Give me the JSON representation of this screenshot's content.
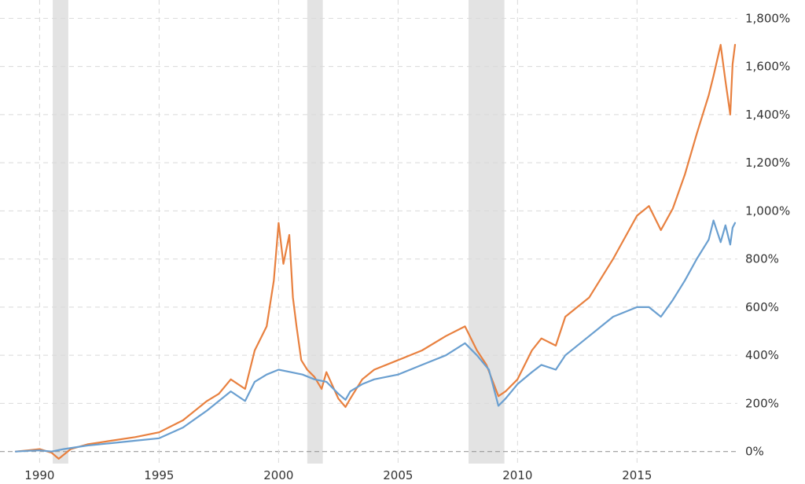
{
  "chart_data": {
    "type": "line",
    "title": "",
    "xlabel": "",
    "ylabel": "",
    "xlim": [
      1989.0,
      2019.2
    ],
    "ylim": [
      -50,
      1850
    ],
    "x_ticks": [
      1990,
      1995,
      2000,
      2005,
      2010,
      2015
    ],
    "x_tick_labels": [
      "1990",
      "1995",
      "2000",
      "2005",
      "2010",
      "2015"
    ],
    "y_ticks": [
      0,
      200,
      400,
      600,
      800,
      1000,
      1200,
      1400,
      1600,
      1800
    ],
    "y_tick_labels": [
      "0%",
      "200%",
      "400%",
      "600%",
      "800%",
      "1,000%",
      "1,200%",
      "1,400%",
      "1,600%",
      "1,800%"
    ],
    "grid": true,
    "legend": "none",
    "recession_shading": [
      {
        "start": 1990.55,
        "end": 1991.2
      },
      {
        "start": 2001.2,
        "end": 2001.85
      },
      {
        "start": 2007.95,
        "end": 2009.45
      }
    ],
    "colors": {
      "series_orange": "#e8803f",
      "series_blue": "#6a9fd0",
      "recession": "#e3e3e3"
    },
    "series": [
      {
        "color": "#e8803f",
        "x": [
          1989.0,
          1989.5,
          1990.0,
          1990.5,
          1990.8,
          1991.3,
          1992.0,
          1993.0,
          1994.0,
          1995.0,
          1996.0,
          1997.0,
          1997.5,
          1998.0,
          1998.6,
          1999.0,
          1999.5,
          1999.8,
          2000.0,
          2000.2,
          2000.45,
          2000.6,
          2000.75,
          2000.95,
          2001.2,
          2001.5,
          2001.8,
          2002.0,
          2002.5,
          2002.8,
          2003.0,
          2003.5,
          2004.0,
          2005.0,
          2006.0,
          2007.0,
          2007.8,
          2008.3,
          2008.7,
          2009.2,
          2009.5,
          2010.0,
          2010.6,
          2011.0,
          2011.6,
          2012.0,
          2013.0,
          2014.0,
          2015.0,
          2015.5,
          2016.0,
          2016.5,
          2017.0,
          2017.5,
          2018.0,
          2018.2,
          2018.5,
          2018.7,
          2018.9,
          2019.0,
          2019.1
        ],
        "values": [
          0,
          5,
          10,
          -5,
          -30,
          10,
          30,
          45,
          60,
          80,
          130,
          210,
          240,
          300,
          260,
          420,
          520,
          710,
          950,
          780,
          900,
          640,
          520,
          380,
          340,
          310,
          260,
          330,
          220,
          185,
          220,
          300,
          340,
          380,
          420,
          480,
          520,
          420,
          360,
          230,
          250,
          300,
          420,
          470,
          440,
          560,
          640,
          800,
          980,
          1020,
          920,
          1010,
          1150,
          1320,
          1480,
          1560,
          1690,
          1540,
          1400,
          1610,
          1690
        ]
      },
      {
        "color": "#6a9fd0",
        "x": [
          1989.0,
          1989.5,
          1990.0,
          1990.5,
          1991.0,
          1992.0,
          1993.0,
          1994.0,
          1995.0,
          1996.0,
          1997.0,
          1998.0,
          1998.6,
          1999.0,
          1999.5,
          2000.0,
          2000.5,
          2001.0,
          2001.5,
          2002.0,
          2002.5,
          2002.8,
          2003.0,
          2003.5,
          2004.0,
          2005.0,
          2006.0,
          2007.0,
          2007.8,
          2008.3,
          2008.8,
          2009.2,
          2009.5,
          2010.0,
          2010.6,
          2011.0,
          2011.6,
          2012.0,
          2013.0,
          2014.0,
          2015.0,
          2015.5,
          2016.0,
          2016.5,
          2017.0,
          2017.5,
          2018.0,
          2018.2,
          2018.5,
          2018.7,
          2018.9,
          2019.0,
          2019.1
        ],
        "values": [
          0,
          3,
          5,
          0,
          10,
          25,
          35,
          45,
          55,
          100,
          170,
          250,
          210,
          290,
          320,
          340,
          330,
          320,
          300,
          290,
          240,
          215,
          250,
          280,
          300,
          320,
          360,
          400,
          450,
          400,
          340,
          190,
          220,
          280,
          330,
          360,
          340,
          400,
          480,
          560,
          600,
          600,
          560,
          630,
          710,
          800,
          880,
          960,
          870,
          940,
          860,
          930,
          950
        ]
      }
    ]
  }
}
